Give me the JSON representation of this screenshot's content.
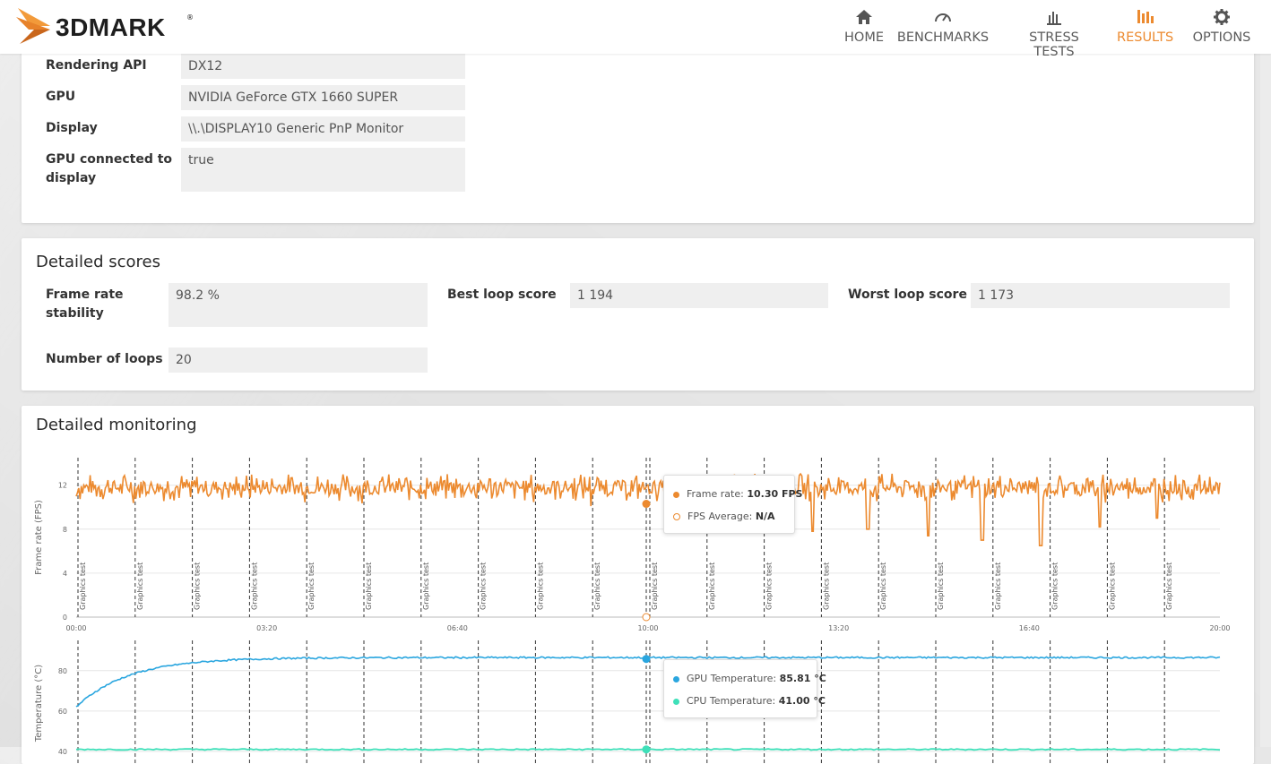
{
  "app": {
    "logo_text": "3DMARK",
    "logo_tm": "®",
    "accent_color": "#ec8a2f"
  },
  "nav": {
    "items": [
      {
        "label": "HOME",
        "icon": "home-icon"
      },
      {
        "label": "BENCHMARKS",
        "icon": "speedometer-icon"
      },
      {
        "label": "STRESS TESTS",
        "icon": "bar-chart-icon"
      },
      {
        "label": "RESULTS",
        "icon": "results-bars-icon",
        "active": true
      },
      {
        "label": "OPTIONS",
        "icon": "gear-icon"
      }
    ]
  },
  "system_info": {
    "rows": [
      {
        "label": "Rendering API",
        "value": "DX12"
      },
      {
        "label": "GPU",
        "value": "NVIDIA GeForce GTX 1660 SUPER"
      },
      {
        "label": "Display",
        "value": "\\\\.\\DISPLAY10 Generic PnP Monitor"
      },
      {
        "label_line1": "GPU connected to",
        "label_line2": "display",
        "value": "true"
      }
    ]
  },
  "detailed_scores": {
    "title": "Detailed scores",
    "frame_rate_stability_l1": "Frame rate",
    "frame_rate_stability_l2": "stability",
    "frame_rate_stability_value": "98.2 %",
    "best_loop_label": "Best loop score",
    "best_loop_value": "1 194",
    "worst_loop_label": "Worst loop score",
    "worst_loop_value": "1 173",
    "loops_label": "Number of loops",
    "loops_value": "20"
  },
  "detailed_monitoring": {
    "title": "Detailed monitoring",
    "fps_tooltip": {
      "frame_rate_label": "Frame rate:",
      "frame_rate_value": "10.30 FPS",
      "fps_avg_label": "FPS Average:",
      "fps_avg_value": "N/A"
    },
    "temp_tooltip": {
      "gpu_label": "GPU Temperature:",
      "gpu_value": "85.81 °C",
      "cpu_label": "CPU Temperature:",
      "cpu_value": "41.00 °C"
    }
  },
  "chart_data": [
    {
      "type": "line",
      "ylabel": "Frame rate (FPS)",
      "xlabel": "",
      "x_ticks": [
        "00:00",
        "03:20",
        "06:40",
        "10:00",
        "13:20",
        "16:40",
        "20:00"
      ],
      "y_ticks": [
        0,
        4,
        8,
        12
      ],
      "ylim": [
        0,
        14.5
      ],
      "xlim_seconds": [
        0,
        1200
      ],
      "marker_label": "Graphics test",
      "marker_count": 20,
      "color": "#ec8a2f",
      "series": [
        {
          "name": "Frame rate",
          "baseline": 11.8,
          "noise": 0.9,
          "dips": [
            {
              "t": 0.644,
              "v": 7.8
            },
            {
              "t": 0.692,
              "v": 8.0
            },
            {
              "t": 0.745,
              "v": 7.4
            },
            {
              "t": 0.792,
              "v": 7.0
            },
            {
              "t": 0.843,
              "v": 6.5
            },
            {
              "t": 0.895,
              "v": 8.2
            },
            {
              "t": 0.945,
              "v": 9.0
            }
          ]
        }
      ],
      "cursor": {
        "t": 0.5,
        "value": 10.3
      }
    },
    {
      "type": "line",
      "ylabel": "Temperature (°C)",
      "xlabel": "",
      "y_ticks": [
        40,
        60,
        80
      ],
      "ylim": [
        35,
        95
      ],
      "marker_count": 20,
      "series": [
        {
          "name": "GPU Temperature",
          "color": "#2aa6df",
          "start": 62,
          "plateau": 86.5
        },
        {
          "name": "CPU Temperature",
          "color": "#3fe0b9",
          "value": 41.0
        }
      ],
      "cursor": {
        "t": 0.5,
        "gpu": 85.81,
        "cpu": 41.0
      }
    }
  ]
}
